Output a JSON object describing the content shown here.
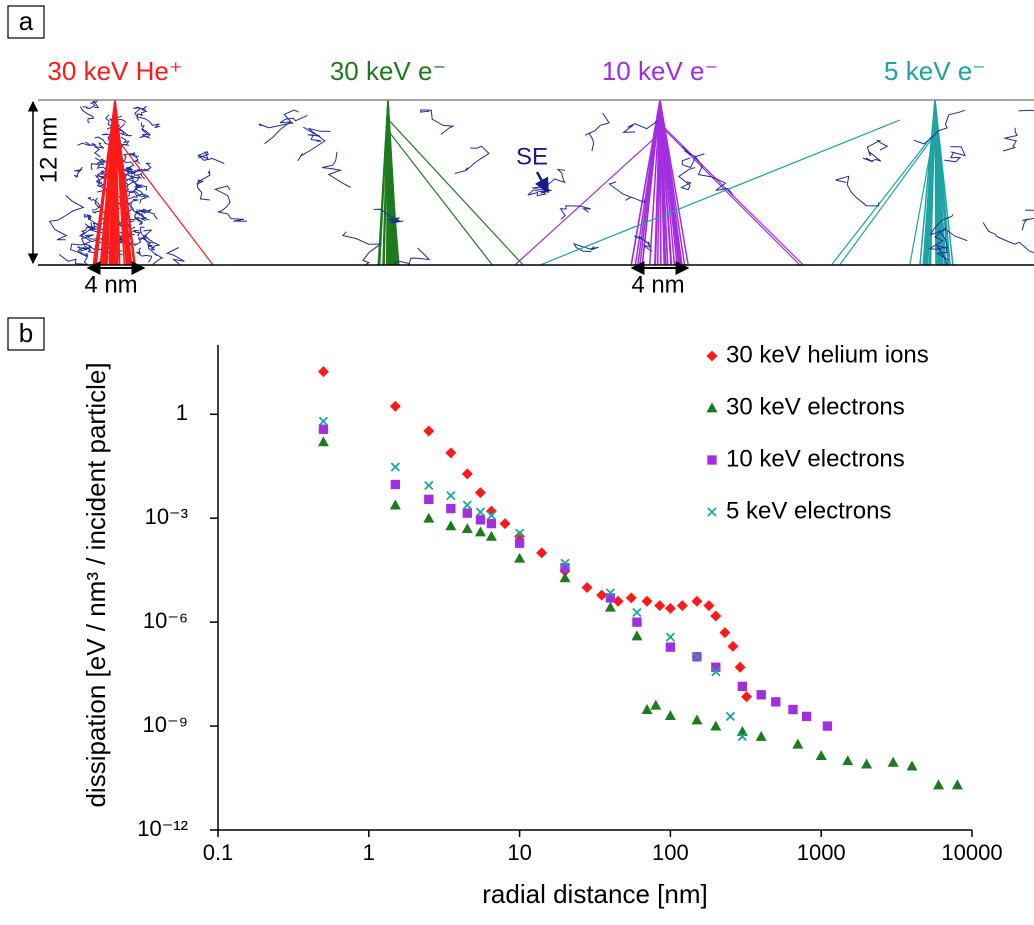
{
  "panel_a": {
    "label": "a",
    "beams": [
      {
        "label": "30 keV He⁺",
        "color": "#ff1a1a"
      },
      {
        "label": "30 keV e⁻",
        "color": "#1e7a1e"
      },
      {
        "label": "10 keV e⁻",
        "color": "#a22ee0"
      },
      {
        "label": "5 keV e⁻",
        "color": "#1fa3a3"
      }
    ],
    "depth_label": "12 nm",
    "annotation": "SE",
    "scale_bars": [
      "4 nm",
      "4 nm"
    ]
  },
  "panel_b_label": "b",
  "chart_data": {
    "type": "scatter",
    "xlabel": "radial distance [nm]",
    "ylabel": "dissipation [eV / nm³ / incident particle]",
    "xscale": "log",
    "yscale": "log",
    "xlim": [
      0.1,
      10000
    ],
    "ylim": [
      1e-12,
      100
    ],
    "xticks": [
      0.1,
      1,
      10,
      100,
      1000,
      10000
    ],
    "yticks": [
      {
        "value": 1e-12,
        "label": "10⁻¹²"
      },
      {
        "value": 1e-09,
        "label": "10⁻⁹"
      },
      {
        "value": 1e-06,
        "label": "10⁻⁶"
      },
      {
        "value": 0.001,
        "label": "10⁻³"
      },
      1
    ],
    "legend": "upper right",
    "series": [
      {
        "name": "30 keV helium ions",
        "color": "#ff1a1a",
        "marker": "diamond",
        "x": [
          0.5,
          1.5,
          2.5,
          3.5,
          4.5,
          5.5,
          6.5,
          8,
          10,
          14,
          20,
          28,
          35,
          45,
          55,
          70,
          85,
          100,
          120,
          150,
          180,
          200,
          230,
          260,
          290,
          320
        ],
        "values": [
          17,
          1.7,
          0.33,
          0.077,
          0.019,
          0.0055,
          0.0016,
          0.0007,
          0.0003,
          0.0001,
          3e-05,
          1e-05,
          6e-06,
          4e-06,
          5e-06,
          4e-06,
          3e-06,
          2.5e-06,
          3e-06,
          4e-06,
          3e-06,
          1.5e-06,
          5e-07,
          2e-07,
          5e-08,
          7e-09
        ]
      },
      {
        "name": "30 keV electrons",
        "color": "#1e7a1e",
        "marker": "triangle",
        "x": [
          0.5,
          1.5,
          2.5,
          3.5,
          4.5,
          5.5,
          6.5,
          10,
          20,
          40,
          60,
          70,
          80,
          100,
          150,
          200,
          300,
          400,
          700,
          1000,
          1500,
          2000,
          3000,
          4000,
          6000,
          8000
        ],
        "values": [
          0.16,
          0.0024,
          0.001,
          0.0006,
          0.0005,
          0.0004,
          0.0003,
          7e-05,
          1.9e-05,
          2.7e-06,
          4e-07,
          3e-09,
          4e-09,
          2e-09,
          1.5e-09,
          1e-09,
          7e-10,
          5e-10,
          3e-10,
          1.4e-10,
          1e-10,
          8e-11,
          9e-11,
          7e-11,
          2e-11,
          2e-11
        ]
      },
      {
        "name": "10 keV electrons",
        "color": "#a22ee0",
        "marker": "square",
        "x": [
          0.5,
          1.5,
          2.5,
          3.5,
          4.5,
          5.5,
          6.5,
          10,
          20,
          40,
          60,
          100,
          150,
          200,
          300,
          400,
          500,
          650,
          800,
          1100
        ],
        "values": [
          0.37,
          0.0094,
          0.0035,
          0.0019,
          0.0014,
          0.0009,
          0.0007,
          0.00019,
          3.7e-05,
          5e-06,
          1e-06,
          1.9e-07,
          1e-07,
          5e-08,
          1.4e-08,
          8e-09,
          5e-09,
          3e-09,
          1.9e-09,
          1e-09
        ]
      },
      {
        "name": "5 keV electrons",
        "color": "#1fa3a3",
        "marker": "cross",
        "x": [
          0.5,
          1.5,
          2.5,
          3.5,
          4.5,
          5.5,
          6.5,
          10,
          20,
          40,
          60,
          100,
          150,
          200,
          250,
          300
        ],
        "values": [
          0.63,
          0.03,
          0.0088,
          0.0045,
          0.0024,
          0.0015,
          0.0012,
          0.00037,
          5e-05,
          7e-06,
          1.9e-06,
          3.7e-07,
          1e-07,
          3.7e-08,
          1.9e-09,
          5e-10
        ]
      }
    ]
  }
}
